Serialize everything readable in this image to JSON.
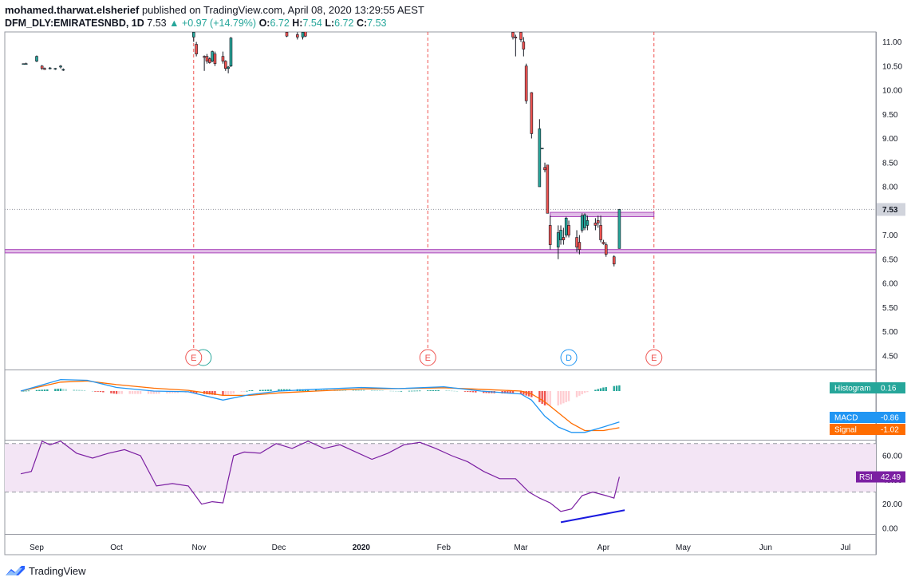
{
  "header": {
    "author": "mohamed.tharwat.elsherief",
    "published_text": "published on TradingView.com, April 08, 2020 13:29:55 AEST",
    "symbol": "DFM_DLY:EMIRATESNBD, 1D",
    "last": "7.53",
    "change": "+0.97 (+14.79%)",
    "o_label": "O:",
    "o": "6.72",
    "h_label": "H:",
    "h": "7.54",
    "l_label": "L:",
    "l": "6.72",
    "c_label": "C:",
    "c": "7.53"
  },
  "footer": {
    "brand": "TradingView"
  },
  "colors": {
    "up": "#26a69a",
    "down": "#ef5350",
    "candle_up": "#26a69a",
    "candle_down": "#ef5350",
    "macd": "#2196f3",
    "signal": "#ff6d00",
    "rsi": "#7b1fa2",
    "rsi_band": "#f3e5f5",
    "zone": "#e1bee7",
    "zone_border": "#ab47bc",
    "event_red": "#ef5350",
    "event_blue": "#2196f3",
    "trendline": "#1a1adf",
    "histogram_label": "#26a69a"
  },
  "chart_data": [
    {
      "type": "candlestick",
      "title": "DFM_DLY:EMIRATESNBD, 1D",
      "ylim": [
        4.3,
        11.2
      ],
      "price_ticks": [
        "11.00",
        "10.50",
        "10.00",
        "9.50",
        "9.00",
        "8.50",
        "8.00",
        "7.50",
        "7.00",
        "6.50",
        "6.00",
        "5.50",
        "5.00",
        "4.50"
      ],
      "last_price_label": "7.53",
      "x_labels": [
        "Sep",
        "Oct",
        "Nov",
        "Dec",
        "2020",
        "Feb",
        "Mar",
        "Apr",
        "May",
        "Jun",
        "Jul"
      ],
      "candles": [
        {
          "date": "2019-08-27",
          "o": 10.55,
          "h": 10.55,
          "l": 10.55,
          "c": 10.55
        },
        {
          "date": "2019-08-28",
          "o": 10.55,
          "h": 10.57,
          "l": 10.53,
          "c": 10.55
        },
        {
          "date": "2019-09-01",
          "o": 10.6,
          "h": 10.72,
          "l": 10.58,
          "c": 10.7
        },
        {
          "date": "2019-09-03",
          "o": 10.5,
          "h": 10.52,
          "l": 10.42,
          "c": 10.45
        },
        {
          "date": "2019-09-04",
          "o": 10.45,
          "h": 10.47,
          "l": 10.42,
          "c": 10.43
        },
        {
          "date": "2019-09-06",
          "o": 10.45,
          "h": 10.48,
          "l": 10.43,
          "c": 10.46
        },
        {
          "date": "2019-09-08",
          "o": 10.44,
          "h": 10.46,
          "l": 10.42,
          "c": 10.45
        },
        {
          "date": "2019-09-10",
          "o": 10.48,
          "h": 10.52,
          "l": 10.45,
          "c": 10.5
        },
        {
          "date": "2019-09-11",
          "o": 10.43,
          "h": 10.45,
          "l": 10.4,
          "c": 10.43
        },
        {
          "date": "2019-10-30",
          "o": 11.1,
          "h": 11.25,
          "l": 11.0,
          "c": 11.2
        },
        {
          "date": "2019-10-31",
          "o": 10.95,
          "h": 11.0,
          "l": 10.7,
          "c": 10.75
        },
        {
          "date": "2019-11-03",
          "o": 10.7,
          "h": 10.72,
          "l": 10.4,
          "c": 10.68
        },
        {
          "date": "2019-11-04",
          "o": 10.7,
          "h": 10.75,
          "l": 10.55,
          "c": 10.6
        },
        {
          "date": "2019-11-05",
          "o": 10.65,
          "h": 10.68,
          "l": 10.55,
          "c": 10.57
        },
        {
          "date": "2019-11-06",
          "o": 10.6,
          "h": 10.82,
          "l": 10.58,
          "c": 10.8
        },
        {
          "date": "2019-11-07",
          "o": 10.75,
          "h": 10.8,
          "l": 10.5,
          "c": 10.55
        },
        {
          "date": "2019-11-10",
          "o": 10.7,
          "h": 10.8,
          "l": 10.55,
          "c": 10.6
        },
        {
          "date": "2019-11-11",
          "o": 10.6,
          "h": 10.62,
          "l": 10.4,
          "c": 10.45
        },
        {
          "date": "2019-11-12",
          "o": 10.45,
          "h": 10.5,
          "l": 10.35,
          "c": 10.48
        },
        {
          "date": "2019-11-13",
          "o": 10.5,
          "h": 11.1,
          "l": 10.48,
          "c": 11.08
        },
        {
          "date": "2019-12-04",
          "o": 11.2,
          "h": 11.25,
          "l": 11.1,
          "c": 11.12
        },
        {
          "date": "2019-12-08",
          "o": 11.15,
          "h": 11.2,
          "l": 11.05,
          "c": 11.1
        },
        {
          "date": "2019-12-10",
          "o": 11.1,
          "h": 11.25,
          "l": 11.05,
          "c": 11.2
        },
        {
          "date": "2019-12-11",
          "o": 11.25,
          "h": 11.3,
          "l": 11.1,
          "c": 11.12
        },
        {
          "date": "2020-02-27",
          "o": 11.2,
          "h": 11.25,
          "l": 11.05,
          "c": 11.1
        },
        {
          "date": "2020-02-28",
          "o": 11.1,
          "h": 11.15,
          "l": 10.7,
          "c": 11.08
        },
        {
          "date": "2020-03-01",
          "o": 11.2,
          "h": 11.25,
          "l": 11.0,
          "c": 11.05
        },
        {
          "date": "2020-03-02",
          "o": 11.0,
          "h": 11.1,
          "l": 10.7,
          "c": 10.85
        },
        {
          "date": "2020-03-03",
          "o": 10.5,
          "h": 10.55,
          "l": 9.72,
          "c": 9.78
        },
        {
          "date": "2020-03-05",
          "o": 9.95,
          "h": 9.96,
          "l": 9.0,
          "c": 9.1
        },
        {
          "date": "2020-03-08",
          "o": 8.0,
          "h": 9.4,
          "l": 8.0,
          "c": 9.2
        },
        {
          "date": "2020-03-09",
          "o": 8.8,
          "h": 8.8,
          "l": 8.8,
          "c": 8.8
        },
        {
          "date": "2020-03-10",
          "o": 8.4,
          "h": 8.5,
          "l": 8.3,
          "c": 8.35
        },
        {
          "date": "2020-03-11",
          "o": 8.45,
          "h": 8.45,
          "l": 7.5,
          "c": 7.45
        },
        {
          "date": "2020-03-12",
          "o": 7.2,
          "h": 7.4,
          "l": 6.7,
          "c": 6.8
        },
        {
          "date": "2020-03-15",
          "o": 6.75,
          "h": 7.2,
          "l": 6.5,
          "c": 7.05
        },
        {
          "date": "2020-03-16",
          "o": 6.9,
          "h": 7.2,
          "l": 6.8,
          "c": 7.1
        },
        {
          "date": "2020-03-17",
          "o": 6.95,
          "h": 7.15,
          "l": 6.8,
          "c": 6.9
        },
        {
          "date": "2020-03-18",
          "o": 7.0,
          "h": 7.38,
          "l": 6.95,
          "c": 7.35
        },
        {
          "date": "2020-03-19",
          "o": 7.2,
          "h": 7.3,
          "l": 6.95,
          "c": 7.0
        },
        {
          "date": "2020-03-22",
          "o": 6.95,
          "h": 7.1,
          "l": 6.65,
          "c": 6.75
        },
        {
          "date": "2020-03-23",
          "o": 6.85,
          "h": 7.0,
          "l": 6.6,
          "c": 6.7
        },
        {
          "date": "2020-03-24",
          "o": 7.1,
          "h": 7.45,
          "l": 7.05,
          "c": 7.4
        },
        {
          "date": "2020-03-25",
          "o": 7.15,
          "h": 7.45,
          "l": 7.1,
          "c": 7.42
        },
        {
          "date": "2020-03-26",
          "o": 7.2,
          "h": 7.4,
          "l": 7.1,
          "c": 7.3
        },
        {
          "date": "2020-03-29",
          "o": 7.25,
          "h": 7.35,
          "l": 7.1,
          "c": 7.2
        },
        {
          "date": "2020-03-30",
          "o": 7.3,
          "h": 7.4,
          "l": 7.15,
          "c": 7.25
        },
        {
          "date": "2020-03-31",
          "o": 7.2,
          "h": 7.4,
          "l": 6.85,
          "c": 6.9
        },
        {
          "date": "2020-04-01",
          "o": 6.85,
          "h": 6.9,
          "l": 6.8,
          "c": 6.82
        },
        {
          "date": "2020-04-02",
          "o": 6.8,
          "h": 6.85,
          "l": 6.55,
          "c": 6.6
        },
        {
          "date": "2020-04-05",
          "o": 6.55,
          "h": 6.58,
          "l": 6.35,
          "c": 6.4
        },
        {
          "date": "2020-04-07",
          "o": 6.72,
          "h": 7.54,
          "l": 6.72,
          "c": 7.53
        }
      ],
      "support_zone": [
        6.63,
        6.7
      ],
      "resistance_zone": [
        7.38,
        7.47
      ],
      "resistance_zone_dates": [
        "2020-03-12",
        "2020-04-20"
      ],
      "events": [
        {
          "date": "2019-10-30",
          "label": "E",
          "kind": "earnings"
        },
        {
          "date": "2020-01-26",
          "label": "E",
          "kind": "earnings"
        },
        {
          "date": "2020-03-19",
          "label": "D",
          "kind": "dividend"
        },
        {
          "date": "2020-04-20",
          "label": "E",
          "kind": "earnings"
        }
      ]
    },
    {
      "type": "line",
      "title": "MACD",
      "series": [
        {
          "name": "Histogram",
          "last": "0.16"
        },
        {
          "name": "MACD",
          "last": "-0.86"
        },
        {
          "name": "Signal",
          "last": "-1.02"
        }
      ],
      "x": [
        "2019-08-26",
        "2019-09-10",
        "2019-09-20",
        "2019-10-01",
        "2019-10-15",
        "2019-10-28",
        "2019-11-10",
        "2019-11-20",
        "2019-12-01",
        "2019-12-15",
        "2020-01-01",
        "2020-01-15",
        "2020-02-01",
        "2020-02-15",
        "2020-03-01",
        "2020-03-05",
        "2020-03-10",
        "2020-03-15",
        "2020-03-20",
        "2020-03-25",
        "2020-04-01",
        "2020-04-07"
      ],
      "macd": [
        0.0,
        0.32,
        0.3,
        0.1,
        0.0,
        -0.02,
        -0.25,
        -0.1,
        0.0,
        0.05,
        0.1,
        0.07,
        0.12,
        0.0,
        -0.08,
        -0.25,
        -0.7,
        -1.0,
        -1.15,
        -1.15,
        -1.0,
        -0.86
      ],
      "signal": [
        0.0,
        0.25,
        0.28,
        0.18,
        0.08,
        0.02,
        -0.12,
        -0.12,
        -0.05,
        0.0,
        0.06,
        0.07,
        0.09,
        0.05,
        0.0,
        -0.08,
        -0.3,
        -0.6,
        -0.9,
        -1.1,
        -1.1,
        -1.02
      ],
      "histogram": [
        0.0,
        0.07,
        0.02,
        -0.08,
        -0.08,
        -0.04,
        -0.13,
        0.02,
        0.05,
        0.05,
        0.04,
        0.0,
        0.03,
        -0.05,
        -0.08,
        -0.17,
        -0.4,
        -0.4,
        -0.25,
        -0.05,
        0.1,
        0.16
      ]
    },
    {
      "type": "line",
      "title": "RSI",
      "series": [
        {
          "name": "RSI",
          "last": "42.49"
        }
      ],
      "y_ticks": [
        "60.00",
        "40.00",
        "20.00",
        "0.00"
      ],
      "band": [
        30,
        70
      ],
      "x": [
        "2019-08-26",
        "2019-08-30",
        "2019-09-03",
        "2019-09-06",
        "2019-09-10",
        "2019-09-16",
        "2019-09-22",
        "2019-09-28",
        "2019-10-04",
        "2019-10-10",
        "2019-10-16",
        "2019-10-22",
        "2019-10-28",
        "2019-11-02",
        "2019-11-06",
        "2019-11-10",
        "2019-11-14",
        "2019-11-18",
        "2019-11-24",
        "2019-11-30",
        "2019-12-06",
        "2019-12-12",
        "2019-12-18",
        "2019-12-24",
        "2019-12-30",
        "2020-01-05",
        "2020-01-11",
        "2020-01-17",
        "2020-01-23",
        "2020-01-29",
        "2020-02-04",
        "2020-02-10",
        "2020-02-16",
        "2020-02-22",
        "2020-02-28",
        "2020-03-04",
        "2020-03-08",
        "2020-03-12",
        "2020-03-16",
        "2020-03-20",
        "2020-03-24",
        "2020-03-28",
        "2020-04-02",
        "2020-04-05",
        "2020-04-07"
      ],
      "y": [
        45,
        47,
        72,
        69,
        72,
        62,
        58,
        62,
        65,
        60,
        35,
        37,
        35,
        20,
        22,
        21,
        60,
        63,
        62,
        70,
        66,
        72,
        66,
        69,
        63,
        57,
        62,
        69,
        71,
        66,
        60,
        55,
        47,
        41,
        41,
        30,
        25,
        21,
        14,
        16,
        27,
        30,
        27,
        25,
        42.49
      ],
      "trendline": {
        "from": [
          "2020-03-16",
          5
        ],
        "to": [
          "2020-04-09",
          15
        ]
      }
    }
  ]
}
